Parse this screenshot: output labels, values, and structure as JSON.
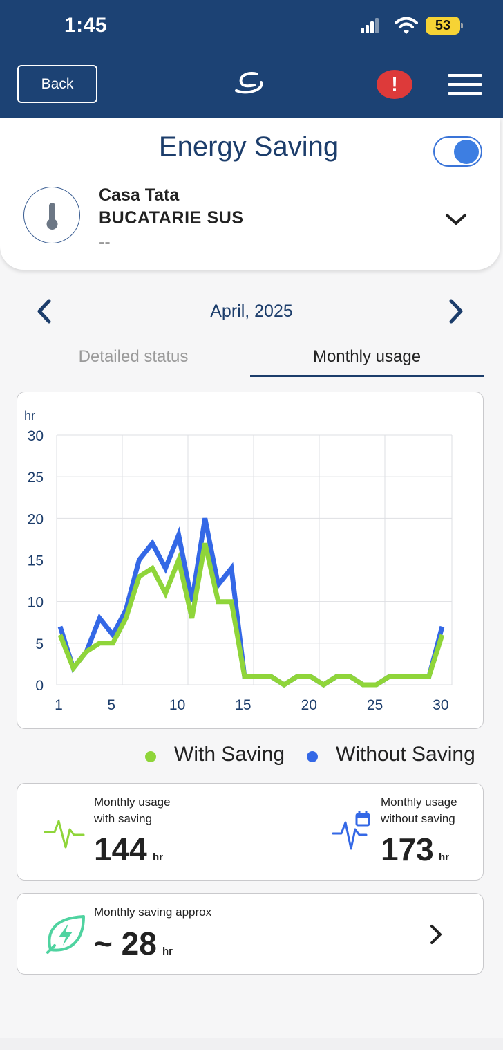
{
  "status_bar": {
    "time": "1:45",
    "battery": "53"
  },
  "header": {
    "back_label": "Back",
    "alert_label": "!"
  },
  "page": {
    "title": "Energy Saving",
    "toggle_on": true
  },
  "device": {
    "home": "Casa Tata",
    "zone": "BUCATARIE SUS",
    "reading": "--"
  },
  "period": {
    "month_label": "April, 2025"
  },
  "tabs": [
    {
      "label": "Detailed status",
      "active": false
    },
    {
      "label": "Monthly usage",
      "active": true
    }
  ],
  "chart_data": {
    "type": "line",
    "ylabel": "hr",
    "ylim": [
      0,
      30
    ],
    "yticks": [
      0,
      5,
      10,
      15,
      20,
      25,
      30
    ],
    "xticks": [
      1,
      5,
      10,
      15,
      20,
      25,
      30
    ],
    "x": [
      1,
      2,
      3,
      4,
      5,
      6,
      7,
      8,
      9,
      10,
      11,
      12,
      13,
      14,
      15,
      16,
      17,
      18,
      19,
      20,
      21,
      22,
      23,
      24,
      25,
      26,
      27,
      28,
      29,
      30
    ],
    "series": [
      {
        "name": "Without Saving",
        "color": "#3468e6",
        "values": [
          7,
          2,
          4,
          8,
          6,
          9,
          15,
          17,
          14,
          18,
          10,
          20,
          12,
          14,
          1,
          1,
          1,
          0,
          1,
          1,
          0,
          1,
          1,
          0,
          0,
          1,
          1,
          1,
          1,
          7
        ]
      },
      {
        "name": "With Saving",
        "color": "#8fd53a",
        "values": [
          6,
          2,
          4,
          5,
          5,
          8,
          13,
          14,
          11,
          15,
          8,
          17,
          10,
          10,
          1,
          1,
          1,
          0,
          1,
          1,
          0,
          1,
          1,
          0,
          0,
          1,
          1,
          1,
          1,
          6
        ]
      }
    ],
    "grid": true
  },
  "legend": {
    "with_saving": "With Saving",
    "without_saving": "Without Saving",
    "with_color": "#8fd53a",
    "without_color": "#3468e6"
  },
  "usage": {
    "with_label_1": "Monthly usage",
    "with_label_2": "with saving",
    "with_value": "144",
    "with_unit": "hr",
    "without_label_1": "Monthly usage",
    "without_label_2": "without saving",
    "without_value": "173",
    "without_unit": "hr"
  },
  "saving": {
    "label": "Monthly saving approx",
    "value": "~ 28",
    "unit": "hr"
  }
}
